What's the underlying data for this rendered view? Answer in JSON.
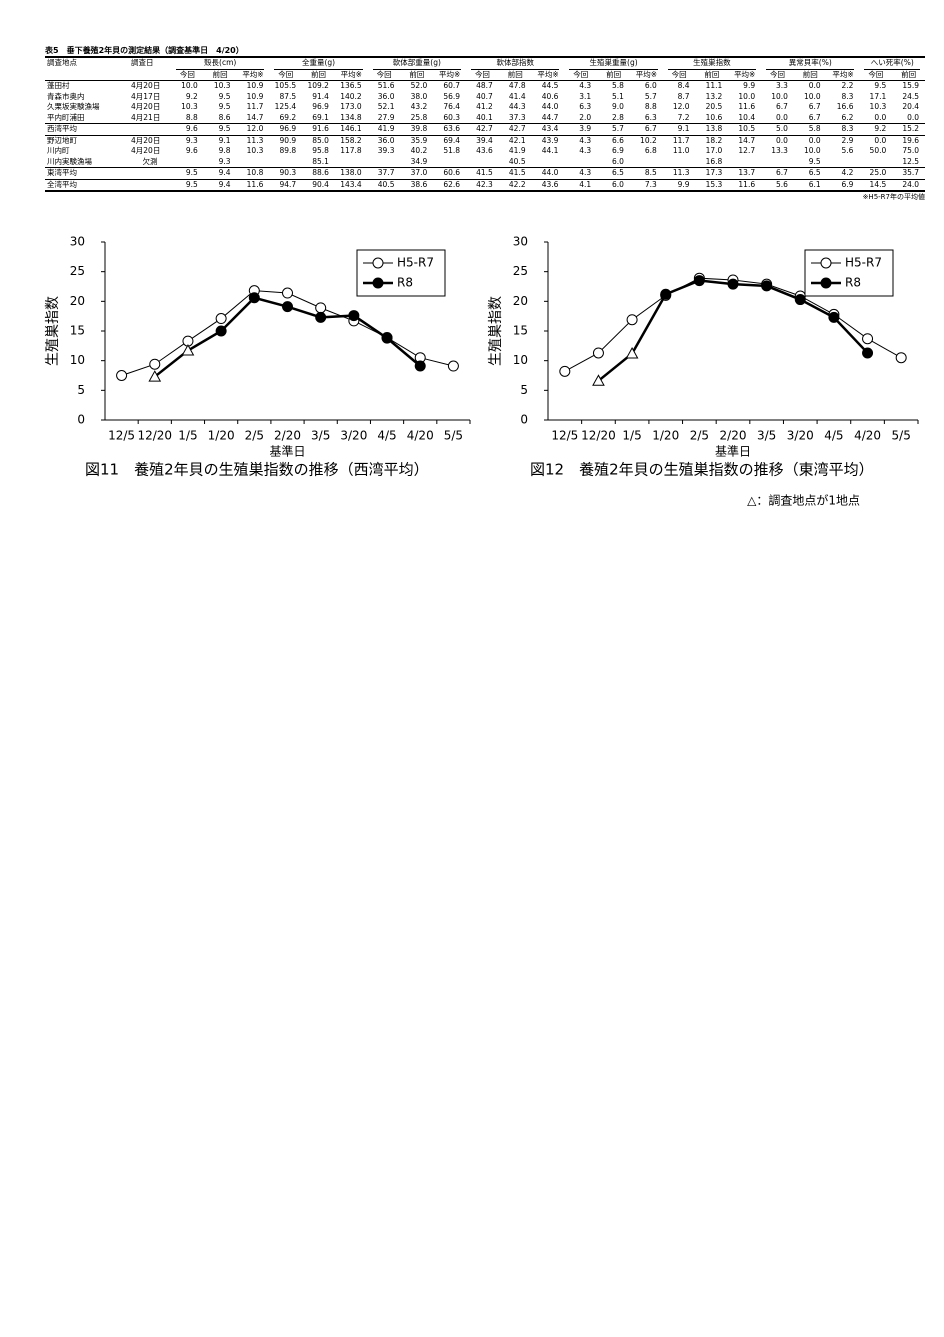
{
  "table": {
    "title": "表5　垂下養殖2年貝の測定結果（調査基準日　4/20）",
    "columns": [
      "調査地点",
      "調査日"
    ],
    "groups": [
      {
        "name": "殻長(cm)",
        "sub": [
          "今回",
          "前回",
          "平均※"
        ]
      },
      {
        "name": "全重量(g)",
        "sub": [
          "今回",
          "前回",
          "平均※"
        ]
      },
      {
        "name": "軟体部重量(g)",
        "sub": [
          "今回",
          "前回",
          "平均※"
        ]
      },
      {
        "name": "軟体部指数",
        "sub": [
          "今回",
          "前回",
          "平均※"
        ]
      },
      {
        "name": "生殖巣重量(g)",
        "sub": [
          "今回",
          "前回",
          "平均※"
        ]
      },
      {
        "name": "生殖巣指数",
        "sub": [
          "今回",
          "前回",
          "平均※"
        ]
      },
      {
        "name": "異常貝率(%)",
        "sub": [
          "今回",
          "前回",
          "平均※"
        ]
      },
      {
        "name": "へい死率(%)",
        "sub": [
          "今回",
          "前回"
        ]
      }
    ],
    "rows": [
      [
        "蓬田村",
        "4月20日",
        "10.0",
        "10.3",
        "10.9",
        "105.5",
        "109.2",
        "136.5",
        "51.6",
        "52.0",
        "60.7",
        "48.7",
        "47.8",
        "44.5",
        "4.3",
        "5.8",
        "6.0",
        "8.4",
        "11.1",
        "9.9",
        "3.3",
        "0.0",
        "2.2",
        "9.5",
        "15.9"
      ],
      [
        "青森市奥内",
        "4月17日",
        "9.2",
        "9.5",
        "10.9",
        "87.5",
        "91.4",
        "140.2",
        "36.0",
        "38.0",
        "56.9",
        "40.7",
        "41.4",
        "40.6",
        "3.1",
        "5.1",
        "5.7",
        "8.7",
        "13.2",
        "10.0",
        "10.0",
        "10.0",
        "8.3",
        "17.1",
        "24.5"
      ],
      [
        "久栗坂実験漁場",
        "4月20日",
        "10.3",
        "9.5",
        "11.7",
        "125.4",
        "96.9",
        "173.0",
        "52.1",
        "43.2",
        "76.4",
        "41.2",
        "44.3",
        "44.0",
        "6.3",
        "9.0",
        "8.8",
        "12.0",
        "20.5",
        "11.6",
        "6.7",
        "6.7",
        "16.6",
        "10.3",
        "20.4"
      ],
      [
        "平内町浦田",
        "4月21日",
        "8.8",
        "8.6",
        "14.7",
        "69.2",
        "69.1",
        "134.8",
        "27.9",
        "25.8",
        "60.3",
        "40.1",
        "37.3",
        "44.7",
        "2.0",
        "2.8",
        "6.3",
        "7.2",
        "10.6",
        "10.4",
        "0.0",
        "6.7",
        "6.2",
        "0.0",
        "0.0"
      ],
      [
        "西湾平均",
        null,
        "9.6",
        "9.5",
        "12.0",
        "96.9",
        "91.6",
        "146.1",
        "41.9",
        "39.8",
        "63.6",
        "42.7",
        "42.7",
        "43.4",
        "3.9",
        "5.7",
        "6.7",
        "9.1",
        "13.8",
        "10.5",
        "5.0",
        "5.8",
        "8.3",
        "9.2",
        "15.2"
      ],
      [
        "野辺地町",
        "4月20日",
        "9.3",
        "9.1",
        "11.3",
        "90.9",
        "85.0",
        "158.2",
        "36.0",
        "35.9",
        "69.4",
        "39.4",
        "42.1",
        "43.9",
        "4.3",
        "6.6",
        "10.2",
        "11.7",
        "18.2",
        "14.7",
        "0.0",
        "0.0",
        "2.9",
        "0.0",
        "19.6"
      ],
      [
        "川内町",
        "4月20日",
        "9.6",
        "9.8",
        "10.3",
        "89.8",
        "95.8",
        "117.8",
        "39.3",
        "40.2",
        "51.8",
        "43.6",
        "41.9",
        "44.1",
        "4.3",
        "6.9",
        "6.8",
        "11.0",
        "17.0",
        "12.7",
        "13.3",
        "10.0",
        "5.6",
        "50.0",
        "75.0"
      ],
      [
        "川内実験漁場",
        "欠測",
        null,
        "9.3",
        null,
        null,
        "85.1",
        null,
        null,
        "34.9",
        null,
        null,
        "40.5",
        null,
        null,
        "6.0",
        null,
        null,
        "16.8",
        null,
        null,
        "9.5",
        null,
        null,
        "12.5"
      ],
      [
        "東湾平均",
        null,
        "9.5",
        "9.4",
        "10.8",
        "90.3",
        "88.6",
        "138.0",
        "37.7",
        "37.0",
        "60.6",
        "41.5",
        "41.5",
        "44.0",
        "4.3",
        "6.5",
        "8.5",
        "11.3",
        "17.3",
        "13.7",
        "6.7",
        "6.5",
        "4.2",
        "25.0",
        "35.7"
      ],
      [
        "全湾平均",
        null,
        "9.5",
        "9.4",
        "11.6",
        "94.7",
        "90.4",
        "143.4",
        "40.5",
        "38.6",
        "62.6",
        "42.3",
        "42.2",
        "43.6",
        "4.1",
        "6.0",
        "7.3",
        "9.9",
        "15.3",
        "11.6",
        "5.6",
        "6.1",
        "6.9",
        "14.5",
        "24.0"
      ]
    ],
    "footnote": "※H5-R7年の平均値"
  },
  "chart_data": [
    {
      "type": "line",
      "title": "図11　養殖2年貝の生殖巣指数の推移（西湾平均）",
      "x_label": "基準日",
      "y_label": "生殖巣指数",
      "categories": [
        "12/5",
        "12/20",
        "1/5",
        "1/20",
        "2/5",
        "2/20",
        "3/5",
        "3/20",
        "4/5",
        "4/20",
        "5/5"
      ],
      "ylim": [
        0,
        30
      ],
      "yticks": [
        0,
        5,
        10,
        15,
        20,
        25,
        30
      ],
      "grid": false,
      "legend": "upper right",
      "series": [
        {
          "name": "H5-R7",
          "color": "#000000",
          "marker": "open-circle",
          "line_width": 1,
          "values": [
            7.5,
            9.4,
            13.3,
            17.1,
            21.8,
            21.4,
            18.9,
            16.7,
            13.9,
            10.5,
            9.1
          ]
        },
        {
          "name": "R8",
          "color": "#000000",
          "marker": "filled-circle",
          "line_width": 2.5,
          "markers": [
            null,
            "open-triangle",
            "open-triangle",
            "filled-circle",
            "filled-circle",
            "filled-circle",
            "filled-circle",
            "filled-circle",
            "filled-circle",
            "filled-circle",
            null
          ],
          "values": [
            null,
            7.3,
            11.7,
            15.0,
            20.6,
            19.1,
            17.3,
            17.6,
            13.8,
            9.1,
            null
          ]
        }
      ]
    },
    {
      "type": "line",
      "title": "図12　養殖2年貝の生殖巣指数の推移（東湾平均）",
      "x_label": "基準日",
      "y_label": "生殖巣指数",
      "categories": [
        "12/5",
        "12/20",
        "1/5",
        "1/20",
        "2/5",
        "2/20",
        "3/5",
        "3/20",
        "4/5",
        "4/20",
        "5/5"
      ],
      "ylim": [
        0,
        30
      ],
      "yticks": [
        0,
        5,
        10,
        15,
        20,
        25,
        30
      ],
      "grid": false,
      "legend": "upper right",
      "series": [
        {
          "name": "H5-R7",
          "color": "#000000",
          "marker": "open-circle",
          "line_width": 1,
          "values": [
            8.2,
            11.3,
            16.9,
            21.0,
            23.9,
            23.6,
            22.9,
            20.9,
            17.8,
            13.7,
            10.5
          ]
        },
        {
          "name": "R8",
          "color": "#000000",
          "marker": "filled-circle",
          "line_width": 2.5,
          "markers": [
            null,
            "open-triangle",
            "open-triangle",
            "filled-circle",
            "filled-circle",
            "filled-circle",
            "filled-circle",
            "filled-circle",
            "filled-circle",
            "filled-circle",
            null
          ],
          "values": [
            null,
            6.6,
            11.2,
            21.2,
            23.5,
            22.9,
            22.6,
            20.3,
            17.3,
            11.3,
            null
          ]
        }
      ]
    }
  ],
  "note": "△：調査地点が1地点"
}
